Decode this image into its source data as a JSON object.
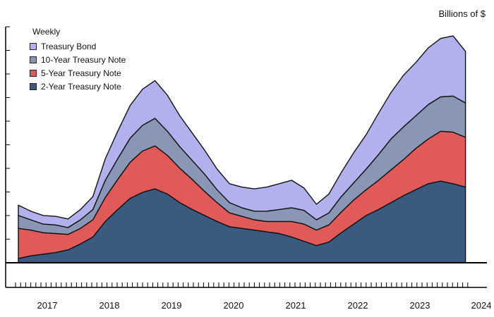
{
  "chart_data": {
    "type": "area",
    "stacked": true,
    "unit_label": "Billions of $",
    "legend_title": "Weekly",
    "legend_placement": "top-left",
    "grid": false,
    "x_ticks": [
      "2017",
      "2018",
      "2019",
      "2020",
      "2021",
      "2022",
      "2023",
      "2024"
    ],
    "x_range": [
      2016.6,
      2023.85
    ],
    "x": [
      2016.6,
      2016.8,
      2017.0,
      2017.2,
      2017.4,
      2017.6,
      2017.8,
      2018.0,
      2018.2,
      2018.4,
      2018.6,
      2018.8,
      2019.0,
      2019.2,
      2019.4,
      2019.6,
      2019.8,
      2020.0,
      2020.2,
      2020.4,
      2020.6,
      2020.8,
      2021.0,
      2021.2,
      2021.4,
      2021.6,
      2021.8,
      2022.0,
      2022.2,
      2022.4,
      2022.6,
      2022.8,
      2023.0,
      2023.2,
      2023.4,
      2023.6,
      2023.8
    ],
    "series": [
      {
        "name": "2-Year Treasury Note",
        "color": "#3a5a80",
        "values": [
          5,
          8,
          10,
          12,
          15,
          22,
          30,
          48,
          62,
          75,
          82,
          86,
          80,
          70,
          62,
          55,
          48,
          42,
          40,
          38,
          36,
          34,
          30,
          25,
          20,
          24,
          35,
          45,
          55,
          62,
          70,
          78,
          85,
          92,
          95,
          92,
          88
        ]
      },
      {
        "name": "5-Year Treasury Note",
        "color": "#e05a5a",
        "values": [
          35,
          30,
          25,
          22,
          18,
          18,
          20,
          28,
          35,
          42,
          48,
          50,
          45,
          40,
          35,
          28,
          22,
          16,
          14,
          12,
          12,
          14,
          18,
          20,
          18,
          20,
          24,
          28,
          30,
          34,
          38,
          42,
          48,
          52,
          58,
          60,
          58
        ]
      },
      {
        "name": "10-Year Treasury Note",
        "color": "#8a96b5",
        "values": [
          15,
          12,
          10,
          10,
          8,
          10,
          12,
          20,
          24,
          28,
          30,
          32,
          28,
          25,
          22,
          20,
          15,
          12,
          10,
          10,
          12,
          14,
          16,
          16,
          12,
          14,
          18,
          20,
          24,
          30,
          36,
          38,
          38,
          40,
          40,
          42,
          40
        ]
      },
      {
        "name": "Treasury Bond",
        "color": "#b3b0ee",
        "values": [
          12,
          10,
          10,
          10,
          10,
          12,
          15,
          25,
          32,
          38,
          42,
          44,
          42,
          36,
          32,
          28,
          24,
          22,
          24,
          26,
          28,
          30,
          32,
          26,
          18,
          22,
          28,
          35,
          40,
          48,
          54,
          60,
          62,
          66,
          68,
          70,
          60
        ]
      }
    ]
  }
}
